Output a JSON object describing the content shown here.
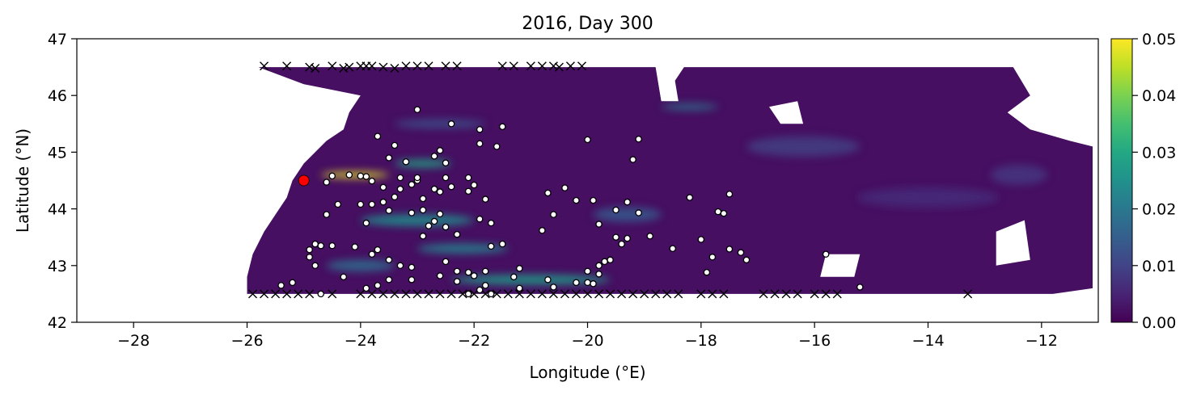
{
  "chart_data": {
    "type": "heatmap",
    "title": "2016, Day 300",
    "xlabel": "Longitude (°E)",
    "ylabel": "Latitude (°N)",
    "xlim": [
      -29,
      -11
    ],
    "ylim": [
      42,
      47
    ],
    "xticks": [
      -28,
      -26,
      -24,
      -22,
      -20,
      -18,
      -16,
      -14,
      -12
    ],
    "xtick_labels": [
      "−28",
      "−26",
      "−24",
      "−22",
      "−20",
      "−18",
      "−16",
      "−14",
      "−12"
    ],
    "yticks": [
      42,
      43,
      44,
      45,
      46,
      47
    ],
    "ytick_labels": [
      "42",
      "43",
      "44",
      "45",
      "46",
      "47"
    ],
    "grid": false,
    "colorbar": {
      "colormap": "viridis",
      "range": [
        0,
        0.05
      ],
      "ticks": [
        0,
        0.01,
        0.02,
        0.03,
        0.04,
        0.05
      ],
      "tick_labels": [
        "0.00",
        "0.01",
        "0.02",
        "0.03",
        "0.04",
        "0.05"
      ]
    },
    "field": {
      "background": 0.002,
      "domain_outline": [
        [
          -25.8,
          46.5
        ],
        [
          -25.0,
          46.5
        ],
        [
          -24.0,
          46.5
        ],
        [
          -22.0,
          46.5
        ],
        [
          -20.0,
          46.5
        ],
        [
          -18.8,
          46.5
        ],
        [
          -18.7,
          45.9
        ],
        [
          -18.3,
          46.5
        ],
        [
          -16.6,
          46.5
        ],
        [
          -15.5,
          46.5
        ],
        [
          -14.2,
          46.5
        ],
        [
          -12.5,
          46.5
        ],
        [
          -12.2,
          46.0
        ],
        [
          -12.6,
          45.7
        ],
        [
          -12.2,
          45.4
        ],
        [
          -11.5,
          45.2
        ],
        [
          -11.1,
          45.1
        ],
        [
          -11.1,
          42.6
        ],
        [
          -11.8,
          42.5
        ],
        [
          -14.0,
          42.5
        ],
        [
          -16.0,
          42.5
        ],
        [
          -18.0,
          42.5
        ],
        [
          -20.0,
          42.5
        ],
        [
          -22.0,
          42.5
        ],
        [
          -24.0,
          42.5
        ],
        [
          -26.0,
          42.5
        ],
        [
          -26.0,
          42.8
        ],
        [
          -25.9,
          43.2
        ],
        [
          -25.7,
          43.6
        ],
        [
          -25.5,
          43.9
        ],
        [
          -25.3,
          44.2
        ],
        [
          -25.2,
          44.5
        ],
        [
          -25.0,
          44.8
        ],
        [
          -24.8,
          45.0
        ],
        [
          -24.6,
          45.2
        ],
        [
          -24.3,
          45.4
        ],
        [
          -24.2,
          45.7
        ],
        [
          -24.0,
          46.0
        ],
        [
          -25.0,
          46.2
        ],
        [
          -25.8,
          46.5
        ]
      ],
      "holes": [
        [
          [
            -18.8,
            46.5
          ],
          [
            -18.5,
            46.5
          ],
          [
            -18.4,
            45.9
          ],
          [
            -18.7,
            45.9
          ]
        ],
        [
          [
            -16.8,
            45.8
          ],
          [
            -16.3,
            45.9
          ],
          [
            -16.2,
            45.5
          ],
          [
            -16.6,
            45.5
          ]
        ],
        [
          [
            -12.8,
            43.6
          ],
          [
            -12.3,
            43.8
          ],
          [
            -12.2,
            43.1
          ],
          [
            -12.8,
            43.0
          ]
        ],
        [
          [
            -15.8,
            43.2
          ],
          [
            -15.2,
            43.2
          ],
          [
            -15.3,
            42.8
          ],
          [
            -15.9,
            42.8
          ]
        ]
      ],
      "hotspots": [
        {
          "lon": -24.1,
          "lat": 44.6,
          "value": 0.048,
          "length": 1.2,
          "width": 0.06
        },
        {
          "lon": -22.9,
          "lat": 44.8,
          "value": 0.03,
          "length": 1.0,
          "width": 0.08
        },
        {
          "lon": -21.0,
          "lat": 42.75,
          "value": 0.028,
          "length": 2.8,
          "width": 0.12
        },
        {
          "lon": -23.0,
          "lat": 43.8,
          "value": 0.025,
          "length": 2.0,
          "width": 0.15
        },
        {
          "lon": -22.2,
          "lat": 43.3,
          "value": 0.022,
          "length": 1.6,
          "width": 0.12
        },
        {
          "lon": -18.2,
          "lat": 45.8,
          "value": 0.02,
          "length": 1.0,
          "width": 0.05
        },
        {
          "lon": -24.0,
          "lat": 43.0,
          "value": 0.018,
          "length": 1.2,
          "width": 0.15
        },
        {
          "lon": -19.3,
          "lat": 43.9,
          "value": 0.014,
          "length": 1.2,
          "width": 0.2
        },
        {
          "lon": -22.6,
          "lat": 45.5,
          "value": 0.012,
          "length": 1.6,
          "width": 0.1
        },
        {
          "lon": -16.2,
          "lat": 45.1,
          "value": 0.009,
          "length": 2.0,
          "width": 0.3
        },
        {
          "lon": -14.0,
          "lat": 44.2,
          "value": 0.006,
          "length": 2.5,
          "width": 0.3
        },
        {
          "lon": -12.4,
          "lat": 44.6,
          "value": 0.008,
          "length": 1.0,
          "width": 0.3
        }
      ]
    },
    "launch_point": {
      "lon": -25.0,
      "lat": 44.5,
      "color": "#ff0000"
    },
    "particles": [
      [
        -24.5,
        44.58
      ],
      [
        -24.2,
        44.6
      ],
      [
        -23.9,
        44.57
      ],
      [
        -24.6,
        44.47
      ],
      [
        -23.0,
        44.5
      ],
      [
        -23.7,
        45.28
      ],
      [
        -23.4,
        45.12
      ],
      [
        -23.0,
        45.75
      ],
      [
        -22.4,
        45.5
      ],
      [
        -21.9,
        45.4
      ],
      [
        -21.5,
        45.45
      ],
      [
        -21.9,
        45.15
      ],
      [
        -21.6,
        45.1
      ],
      [
        -20.0,
        45.22
      ],
      [
        -19.1,
        45.23
      ],
      [
        -19.2,
        44.87
      ],
      [
        -22.7,
        44.93
      ],
      [
        -22.6,
        45.03
      ],
      [
        -22.5,
        44.81
      ],
      [
        -23.2,
        44.83
      ],
      [
        -23.1,
        44.43
      ],
      [
        -23.6,
        44.38
      ],
      [
        -23.5,
        44.9
      ],
      [
        -23.8,
        44.49
      ],
      [
        -24.0,
        44.58
      ],
      [
        -23.3,
        44.55
      ],
      [
        -23.0,
        44.55
      ],
      [
        -22.7,
        44.35
      ],
      [
        -22.5,
        44.55
      ],
      [
        -22.4,
        44.39
      ],
      [
        -22.6,
        44.3
      ],
      [
        -22.1,
        44.55
      ],
      [
        -22.0,
        44.42
      ],
      [
        -22.1,
        44.31
      ],
      [
        -21.8,
        44.17
      ],
      [
        -22.9,
        44.18
      ],
      [
        -23.3,
        44.35
      ],
      [
        -23.4,
        44.21
      ],
      [
        -23.6,
        44.12
      ],
      [
        -23.8,
        44.08
      ],
      [
        -24.0,
        44.08
      ],
      [
        -24.4,
        44.08
      ],
      [
        -24.6,
        43.9
      ],
      [
        -23.9,
        43.75
      ],
      [
        -23.5,
        43.97
      ],
      [
        -23.1,
        43.93
      ],
      [
        -22.9,
        43.98
      ],
      [
        -22.6,
        43.91
      ],
      [
        -22.8,
        43.7
      ],
      [
        -22.9,
        43.52
      ],
      [
        -22.7,
        43.78
      ],
      [
        -22.5,
        43.68
      ],
      [
        -22.3,
        43.55
      ],
      [
        -21.9,
        43.82
      ],
      [
        -21.7,
        43.75
      ],
      [
        -21.7,
        43.34
      ],
      [
        -21.5,
        43.38
      ],
      [
        -20.8,
        43.62
      ],
      [
        -20.6,
        43.9
      ],
      [
        -20.7,
        44.28
      ],
      [
        -20.4,
        44.37
      ],
      [
        -20.2,
        44.15
      ],
      [
        -19.9,
        44.15
      ],
      [
        -19.8,
        43.73
      ],
      [
        -19.5,
        43.98
      ],
      [
        -19.3,
        44.12
      ],
      [
        -19.1,
        43.93
      ],
      [
        -19.5,
        43.5
      ],
      [
        -19.4,
        43.38
      ],
      [
        -19.3,
        43.48
      ],
      [
        -18.9,
        43.52
      ],
      [
        -18.2,
        44.2
      ],
      [
        -18.0,
        43.46
      ],
      [
        -17.7,
        43.95
      ],
      [
        -17.6,
        43.92
      ],
      [
        -17.5,
        44.26
      ],
      [
        -17.5,
        43.29
      ],
      [
        -17.3,
        43.23
      ],
      [
        -17.2,
        43.1
      ],
      [
        -17.8,
        43.15
      ],
      [
        -18.5,
        43.3
      ],
      [
        -17.9,
        42.88
      ],
      [
        -15.8,
        43.2
      ],
      [
        -15.2,
        42.62
      ],
      [
        -19.7,
        43.07
      ],
      [
        -19.8,
        43.0
      ],
      [
        -20.0,
        42.9
      ],
      [
        -19.6,
        43.1
      ],
      [
        -19.8,
        42.85
      ],
      [
        -20.2,
        42.7
      ],
      [
        -20.0,
        42.7
      ],
      [
        -19.9,
        42.68
      ],
      [
        -20.6,
        42.62
      ],
      [
        -20.7,
        42.75
      ],
      [
        -21.2,
        42.95
      ],
      [
        -21.3,
        42.8
      ],
      [
        -21.9,
        42.57
      ],
      [
        -21.8,
        42.65
      ],
      [
        -22.0,
        42.82
      ],
      [
        -21.8,
        42.9
      ],
      [
        -22.1,
        42.88
      ],
      [
        -22.3,
        42.9
      ],
      [
        -22.3,
        42.72
      ],
      [
        -22.5,
        43.07
      ],
      [
        -22.6,
        42.82
      ],
      [
        -22.1,
        42.5
      ],
      [
        -23.3,
        43.0
      ],
      [
        -23.1,
        42.97
      ],
      [
        -23.1,
        42.75
      ],
      [
        -23.5,
        43.1
      ],
      [
        -23.5,
        42.75
      ],
      [
        -23.7,
        43.28
      ],
      [
        -23.8,
        43.2
      ],
      [
        -23.7,
        42.65
      ],
      [
        -24.1,
        43.33
      ],
      [
        -24.3,
        42.8
      ],
      [
        -24.5,
        43.35
      ],
      [
        -24.7,
        43.35
      ],
      [
        -24.8,
        43.38
      ],
      [
        -24.9,
        43.28
      ],
      [
        -24.9,
        43.15
      ],
      [
        -24.8,
        43.0
      ],
      [
        -25.2,
        42.7
      ],
      [
        -25.4,
        42.65
      ],
      [
        -24.7,
        42.5
      ],
      [
        -23.9,
        42.6
      ],
      [
        -21.7,
        42.5
      ],
      [
        -21.2,
        42.6
      ]
    ],
    "stranded": [
      [
        -25.7,
        46.52
      ],
      [
        -25.3,
        46.52
      ],
      [
        -24.9,
        46.5
      ],
      [
        -24.8,
        46.48
      ],
      [
        -24.5,
        46.52
      ],
      [
        -24.3,
        46.48
      ],
      [
        -24.2,
        46.5
      ],
      [
        -24.0,
        46.52
      ],
      [
        -23.9,
        46.52
      ],
      [
        -23.8,
        46.52
      ],
      [
        -23.6,
        46.5
      ],
      [
        -23.4,
        46.48
      ],
      [
        -23.2,
        46.52
      ],
      [
        -23.0,
        46.52
      ],
      [
        -22.8,
        46.52
      ],
      [
        -22.5,
        46.52
      ],
      [
        -22.3,
        46.52
      ],
      [
        -21.5,
        46.52
      ],
      [
        -21.3,
        46.52
      ],
      [
        -21.0,
        46.52
      ],
      [
        -20.8,
        46.52
      ],
      [
        -20.6,
        46.52
      ],
      [
        -20.5,
        46.5
      ],
      [
        -20.3,
        46.52
      ],
      [
        -20.1,
        46.52
      ],
      [
        -25.9,
        42.5
      ],
      [
        -25.7,
        42.5
      ],
      [
        -25.5,
        42.5
      ],
      [
        -25.3,
        42.5
      ],
      [
        -25.1,
        42.5
      ],
      [
        -24.9,
        42.5
      ],
      [
        -24.5,
        42.5
      ],
      [
        -24.0,
        42.5
      ],
      [
        -23.8,
        42.5
      ],
      [
        -23.6,
        42.5
      ],
      [
        -23.4,
        42.5
      ],
      [
        -23.2,
        42.5
      ],
      [
        -23.0,
        42.5
      ],
      [
        -22.8,
        42.5
      ],
      [
        -22.6,
        42.5
      ],
      [
        -22.4,
        42.5
      ],
      [
        -22.2,
        42.5
      ],
      [
        -22.0,
        42.5
      ],
      [
        -21.8,
        42.5
      ],
      [
        -21.6,
        42.5
      ],
      [
        -21.4,
        42.5
      ],
      [
        -21.2,
        42.5
      ],
      [
        -21.0,
        42.5
      ],
      [
        -20.8,
        42.5
      ],
      [
        -20.6,
        42.5
      ],
      [
        -20.4,
        42.5
      ],
      [
        -20.2,
        42.5
      ],
      [
        -20.0,
        42.5
      ],
      [
        -19.8,
        42.5
      ],
      [
        -19.6,
        42.5
      ],
      [
        -19.4,
        42.5
      ],
      [
        -19.2,
        42.5
      ],
      [
        -19.0,
        42.5
      ],
      [
        -18.8,
        42.5
      ],
      [
        -18.6,
        42.5
      ],
      [
        -18.4,
        42.5
      ],
      [
        -18.0,
        42.5
      ],
      [
        -17.8,
        42.5
      ],
      [
        -17.6,
        42.5
      ],
      [
        -16.9,
        42.5
      ],
      [
        -16.7,
        42.5
      ],
      [
        -16.5,
        42.5
      ],
      [
        -16.3,
        42.5
      ],
      [
        -16.0,
        42.5
      ],
      [
        -15.8,
        42.5
      ],
      [
        -15.6,
        42.5
      ],
      [
        -13.3,
        42.5
      ]
    ]
  }
}
